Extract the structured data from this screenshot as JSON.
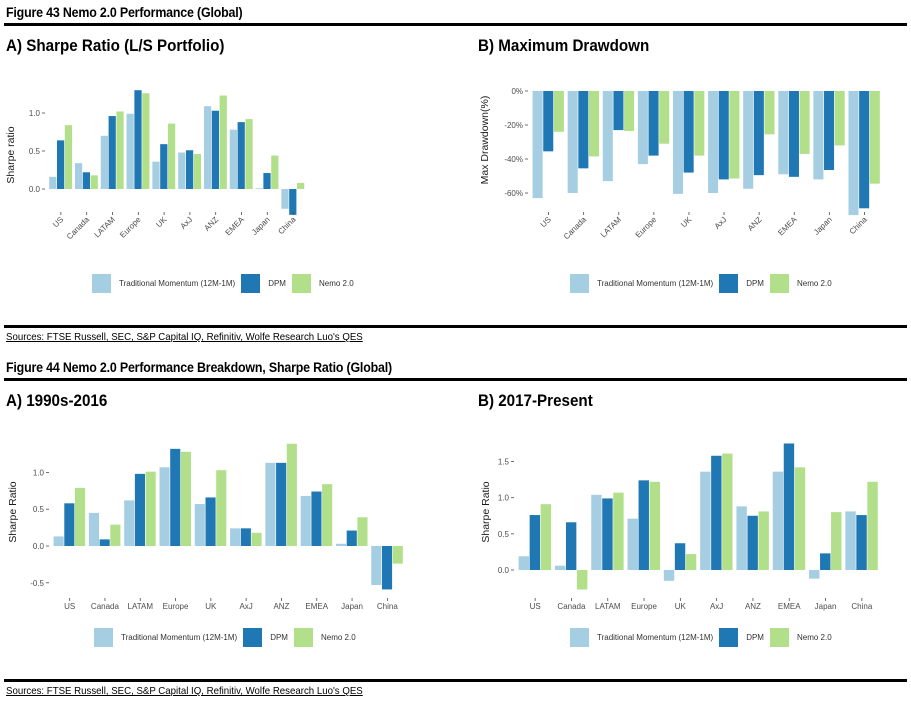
{
  "figure43": {
    "title": "Figure 43 Nemo 2.0 Performance (Global)",
    "sources": "Sources: FTSE Russell, SEC, S&P Capital IQ, Refinitiv, Wolfe Research Luo's QES"
  },
  "figure44": {
    "title": "Figure 44 Nemo 2.0 Performance Breakdown, Sharpe Ratio (Global)",
    "sources": "Sources: FTSE Russell, SEC, S&P Capital IQ, Refinitiv, Wolfe Research Luo's QES"
  },
  "legend": [
    {
      "name": "Traditional Momentum (12M-1M)",
      "color": "#a6cee3"
    },
    {
      "name": "DPM",
      "color": "#1f78b4"
    },
    {
      "name": "Nemo 2.0",
      "color": "#b2df8a"
    }
  ],
  "chart_data": [
    {
      "type": "bar",
      "title": "A) Sharpe Ratio (L/S Portfolio)",
      "xlabel": "",
      "ylabel": "Sharpe ratio",
      "ylim": [
        -0.38,
        1.35
      ],
      "yticks": [
        0.0,
        0.5,
        1.0
      ],
      "ytick_labels": [
        "0.0",
        "0.5",
        "1.0"
      ],
      "x_label_rotation": "45deg",
      "categories": [
        "US",
        "Canada",
        "LATAM",
        "Europe",
        "UK",
        "AxJ",
        "ANZ",
        "EMEA",
        "Japan",
        "China"
      ],
      "series": [
        {
          "name": "Traditional Momentum (12M-1M)",
          "color": "#a6cee3",
          "values": [
            0.16,
            0.34,
            0.7,
            0.99,
            0.36,
            0.48,
            1.09,
            0.78,
            0.01,
            -0.26
          ]
        },
        {
          "name": "DPM",
          "color": "#1f78b4",
          "values": [
            0.64,
            0.22,
            0.96,
            1.3,
            0.59,
            0.51,
            1.03,
            0.88,
            0.21,
            -0.34
          ]
        },
        {
          "name": "Nemo 2.0",
          "color": "#b2df8a",
          "values": [
            0.84,
            0.18,
            1.02,
            1.26,
            0.86,
            0.46,
            1.23,
            0.92,
            0.44,
            0.08
          ]
        }
      ],
      "legend": "bottom",
      "grid": false
    },
    {
      "type": "bar",
      "title": "B) Maximum Drawdown",
      "xlabel": "",
      "ylabel": "Max Drawdown(%)",
      "ylim": [
        -75,
        0
      ],
      "yticks": [
        0,
        -20,
        -40,
        -60
      ],
      "ytick_labels": [
        "0%",
        "-20%",
        "-40%",
        "-60%"
      ],
      "x_label_rotation": "45deg",
      "categories": [
        "US",
        "Canada",
        "LATAM",
        "Europe",
        "UK",
        "AxJ",
        "ANZ",
        "EMEA",
        "Japan",
        "China"
      ],
      "series": [
        {
          "name": "Traditional Momentum (12M-1M)",
          "color": "#a6cee3",
          "values": [
            -63,
            -60,
            -53,
            -43,
            -60.5,
            -60,
            -57.5,
            -49,
            -52,
            -73
          ]
        },
        {
          "name": "DPM",
          "color": "#1f78b4",
          "values": [
            -35.5,
            -45.5,
            -23,
            -38,
            -48,
            -52,
            -49.5,
            -50.5,
            -46.5,
            -69
          ]
        },
        {
          "name": "Nemo 2.0",
          "color": "#b2df8a",
          "values": [
            -24,
            -38.5,
            -23.5,
            -31,
            -38,
            -51.5,
            -25.5,
            -37,
            -32,
            -54.5
          ]
        }
      ],
      "legend": "bottom",
      "grid": false
    },
    {
      "type": "bar",
      "title": "A) 1990s-2016",
      "xlabel": "",
      "ylabel": "Sharpe Ratio",
      "ylim": [
        -0.62,
        1.45
      ],
      "yticks": [
        -0.5,
        0.0,
        0.5,
        1.0
      ],
      "ytick_labels": [
        "-0.5",
        "0.0",
        "0.5",
        "1.0"
      ],
      "x_label_rotation": "0deg",
      "categories": [
        "US",
        "Canada",
        "LATAM",
        "Europe",
        "UK",
        "AxJ",
        "ANZ",
        "EMEA",
        "Japan",
        "China"
      ],
      "series": [
        {
          "name": "Traditional Momentum (12M-1M)",
          "color": "#a6cee3",
          "values": [
            0.13,
            0.45,
            0.62,
            1.07,
            0.57,
            0.24,
            1.13,
            0.68,
            0.03,
            -0.53
          ]
        },
        {
          "name": "DPM",
          "color": "#1f78b4",
          "values": [
            0.58,
            0.09,
            0.98,
            1.32,
            0.66,
            0.24,
            1.13,
            0.74,
            0.21,
            -0.59
          ]
        },
        {
          "name": "Nemo 2.0",
          "color": "#b2df8a",
          "values": [
            0.79,
            0.29,
            1.01,
            1.28,
            1.03,
            0.18,
            1.39,
            0.84,
            0.39,
            -0.24
          ]
        }
      ],
      "legend": "bottom",
      "grid": false
    },
    {
      "type": "bar",
      "title": "B) 2017-Present",
      "xlabel": "",
      "ylabel": "Sharpe Ratio",
      "ylim": [
        -0.3,
        1.8
      ],
      "yticks": [
        0.0,
        0.5,
        1.0,
        1.5
      ],
      "ytick_labels": [
        "0.0",
        "0.5",
        "1.0",
        "1.5"
      ],
      "x_label_rotation": "0deg",
      "categories": [
        "US",
        "Canada",
        "LATAM",
        "Europe",
        "UK",
        "AxJ",
        "ANZ",
        "EMEA",
        "Japan",
        "China"
      ],
      "series": [
        {
          "name": "Traditional Momentum (12M-1M)",
          "color": "#a6cee3",
          "values": [
            0.19,
            0.06,
            1.04,
            0.71,
            -0.15,
            1.36,
            0.88,
            1.36,
            -0.12,
            0.81
          ]
        },
        {
          "name": "DPM",
          "color": "#1f78b4",
          "values": [
            0.76,
            0.66,
            0.99,
            1.24,
            0.37,
            1.58,
            0.75,
            1.75,
            0.23,
            0.76
          ]
        },
        {
          "name": "Nemo 2.0",
          "color": "#b2df8a",
          "values": [
            0.91,
            -0.27,
            1.07,
            1.22,
            0.22,
            1.61,
            0.81,
            1.42,
            0.8,
            1.22
          ]
        }
      ],
      "legend": "bottom",
      "grid": false
    }
  ]
}
